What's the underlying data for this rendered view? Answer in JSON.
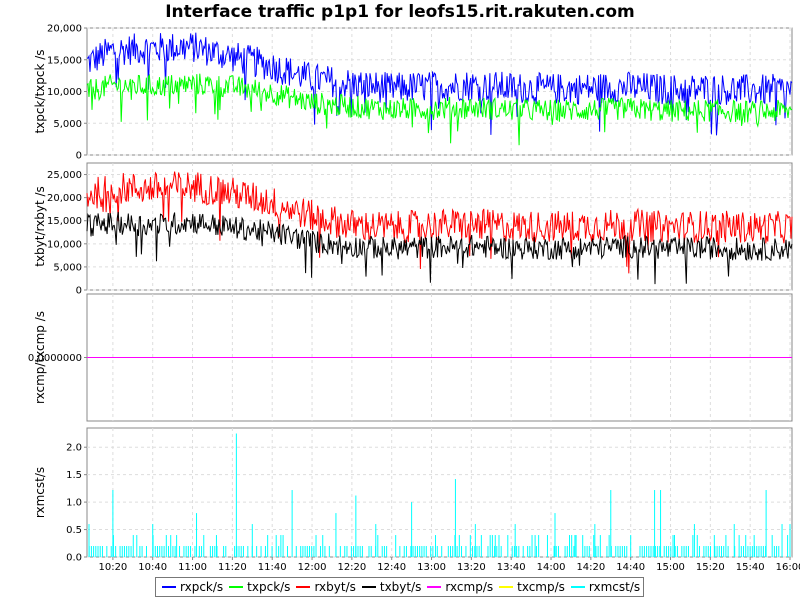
{
  "colors": {
    "rxpck": "#0000ff",
    "txpck": "#00ff00",
    "rxbyt": "#ff0000",
    "txbyt": "#000000",
    "rxcmp": "#ff00ff",
    "txcmp": "#ffff00",
    "rxmcst": "#00ffff"
  },
  "chart_data": [
    {
      "type": "line",
      "title": "Interface traffic p1p1 for leofs15.rit.rakuten.com",
      "ylabel": "txpck/txpck /s",
      "ylim": [
        0,
        20000
      ],
      "yticks": [
        "0",
        "5,000",
        "10,000",
        "15,000",
        "20,000"
      ],
      "x": [
        "10:07",
        "10:20",
        "10:40",
        "11:00",
        "11:20",
        "11:40",
        "12:00",
        "12:20",
        "12:40",
        "13:00",
        "13:20",
        "13:40",
        "14:00",
        "14:20",
        "14:40",
        "15:00",
        "15:20",
        "15:40",
        "16:00",
        "16:01"
      ],
      "series": [
        {
          "name": "rxpck/s",
          "values": [
            14500,
            16500,
            16800,
            17000,
            15500,
            14000,
            12000,
            11200,
            10500,
            10800,
            11000,
            10600,
            10400,
            10500,
            10700,
            10300,
            10400,
            10200,
            10300,
            10000
          ]
        },
        {
          "name": "txpck/s",
          "values": [
            10000,
            11000,
            10800,
            11200,
            10800,
            9800,
            8200,
            7600,
            7200,
            7300,
            7500,
            7100,
            7000,
            7100,
            7300,
            6900,
            7000,
            6800,
            6900,
            6700
          ]
        }
      ]
    },
    {
      "type": "line",
      "ylabel": "txbyt/rxbyt /s",
      "ylim": [
        0,
        27500
      ],
      "yticks": [
        "0",
        "5,000",
        "10,000",
        "15,000",
        "20,000",
        "25,000"
      ],
      "x": [
        "10:07",
        "10:20",
        "10:40",
        "11:00",
        "11:20",
        "11:40",
        "12:00",
        "12:20",
        "12:40",
        "13:00",
        "13:20",
        "13:40",
        "14:00",
        "14:20",
        "14:40",
        "15:00",
        "15:20",
        "15:40",
        "16:00",
        "16:01"
      ],
      "series": [
        {
          "name": "rxbyt/s",
          "values": [
            20500,
            22000,
            22000,
            22500,
            21000,
            19000,
            16000,
            14000,
            13500,
            14000,
            14200,
            13800,
            13700,
            13900,
            14100,
            13600,
            13800,
            13500,
            13600,
            13200
          ]
        },
        {
          "name": "txbyt/s",
          "values": [
            14000,
            14500,
            14000,
            14800,
            13500,
            12500,
            10500,
            9500,
            9000,
            9300,
            9500,
            9100,
            9000,
            9200,
            9400,
            8900,
            9100,
            8800,
            8900,
            8700
          ]
        }
      ]
    },
    {
      "type": "line",
      "ylabel": "rxcmp/txcmp /s",
      "ylim": [
        -1,
        1
      ],
      "yticks": [
        "0.0000000"
      ],
      "x": [
        "10:07",
        "16:01"
      ],
      "series": [
        {
          "name": "rxcmp/s",
          "values": [
            0,
            0
          ]
        },
        {
          "name": "txcmp/s",
          "values": [
            0,
            0
          ]
        }
      ]
    },
    {
      "type": "bar",
      "ylabel": "rxmcst/s",
      "ylim": [
        0,
        2.35
      ],
      "yticks": [
        "0.0",
        "0.5",
        "1.0",
        "1.5",
        "2.0"
      ],
      "xticks": [
        "10:20",
        "10:40",
        "11:00",
        "11:20",
        "11:40",
        "12:00",
        "12:20",
        "12:40",
        "13:00",
        "13:20",
        "13:40",
        "14:00",
        "14:20",
        "14:40",
        "15:00",
        "15:20",
        "15:40",
        "16:00"
      ],
      "series": [
        {
          "name": "rxmcst/s",
          "spikes": [
            [
              "10:08",
              0.6
            ],
            [
              "10:20",
              1.22
            ],
            [
              "10:32",
              0.4
            ],
            [
              "10:40",
              0.6
            ],
            [
              "10:52",
              0.4
            ],
            [
              "11:02",
              0.8
            ],
            [
              "11:12",
              0.4
            ],
            [
              "11:22",
              2.25
            ],
            [
              "11:30",
              0.6
            ],
            [
              "11:42",
              0.4
            ],
            [
              "11:50",
              1.22
            ],
            [
              "12:02",
              0.4
            ],
            [
              "12:12",
              0.8
            ],
            [
              "12:22",
              1.12
            ],
            [
              "12:32",
              0.6
            ],
            [
              "12:42",
              0.4
            ],
            [
              "12:50",
              1.0
            ],
            [
              "13:02",
              0.4
            ],
            [
              "13:12",
              1.42
            ],
            [
              "13:22",
              0.6
            ],
            [
              "13:32",
              0.4
            ],
            [
              "13:42",
              0.6
            ],
            [
              "13:52",
              0.4
            ],
            [
              "14:02",
              0.8
            ],
            [
              "14:12",
              0.4
            ],
            [
              "14:22",
              0.6
            ],
            [
              "14:30",
              1.22
            ],
            [
              "14:40",
              0.4
            ],
            [
              "14:52",
              1.22
            ],
            [
              "14:55",
              1.22
            ],
            [
              "15:02",
              0.4
            ],
            [
              "15:12",
              0.6
            ],
            [
              "15:22",
              0.4
            ],
            [
              "15:32",
              0.6
            ],
            [
              "15:42",
              0.4
            ],
            [
              "15:48",
              1.22
            ],
            [
              "15:56",
              0.6
            ],
            [
              "16:00",
              0.6
            ]
          ],
          "baseline": 0.2
        }
      ]
    }
  ]
}
